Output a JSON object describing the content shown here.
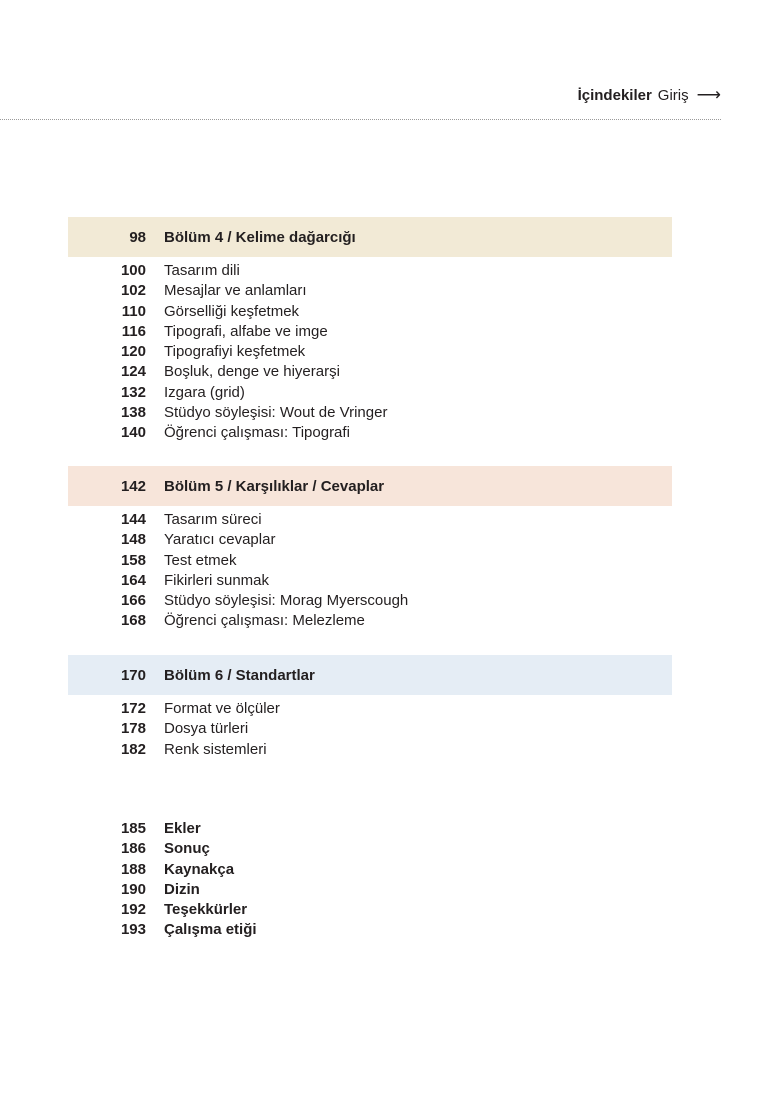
{
  "header": {
    "title": "İçindekiler",
    "subtitle": "Giriş",
    "arrow_icon": "arrow-right-icon"
  },
  "sections": [
    {
      "page": "98",
      "title": "Bölüm 4 / Kelime dağarcığı",
      "color": "#f2ead6",
      "items": [
        {
          "page": "100",
          "title": "Tasarım dili"
        },
        {
          "page": "102",
          "title": "Mesajlar ve anlamları"
        },
        {
          "page": "110",
          "title": "Görselliği keşfetmek"
        },
        {
          "page": "116",
          "title": "Tipografi, alfabe ve imge"
        },
        {
          "page": "120",
          "title": "Tipografiyi keşfetmek"
        },
        {
          "page": "124",
          "title": "Boşluk, denge ve hiyerarşi"
        },
        {
          "page": "132",
          "title": "Izgara (grid)"
        },
        {
          "page": "138",
          "title": "Stüdyo söyleşisi: Wout de Vringer"
        },
        {
          "page": "140",
          "title": "Öğrenci çalışması: Tipografi"
        }
      ]
    },
    {
      "page": "142",
      "title": "Bölüm 5 / Karşılıklar / Cevaplar",
      "color": "#f7e5da",
      "items": [
        {
          "page": "144",
          "title": "Tasarım süreci"
        },
        {
          "page": "148",
          "title": "Yaratıcı cevaplar"
        },
        {
          "page": "158",
          "title": "Test etmek"
        },
        {
          "page": "164",
          "title": "Fikirleri sunmak"
        },
        {
          "page": "166",
          "title": "Stüdyo söyleşisi: Morag Myerscough"
        },
        {
          "page": "168",
          "title": "Öğrenci çalışması: Melezleme"
        }
      ]
    },
    {
      "page": "170",
      "title": "Bölüm 6 / Standartlar",
      "color": "#e5edf5",
      "items": [
        {
          "page": "172",
          "title": "Format ve ölçüler"
        },
        {
          "page": "178",
          "title": "Dosya türleri"
        },
        {
          "page": "182",
          "title": "Renk sistemleri"
        }
      ]
    }
  ],
  "appendix": [
    {
      "page": "185",
      "title": "Ekler"
    },
    {
      "page": "186",
      "title": "Sonuç"
    },
    {
      "page": "188",
      "title": "Kaynakça"
    },
    {
      "page": "190",
      "title": "Dizin"
    },
    {
      "page": "192",
      "title": "Teşekkürler"
    },
    {
      "page": "193",
      "title": "Çalışma etiği"
    }
  ]
}
